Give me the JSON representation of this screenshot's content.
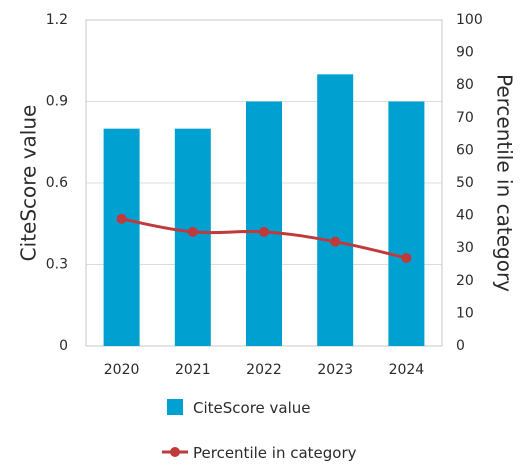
{
  "chart_data": {
    "type": "bar",
    "categories": [
      "2020",
      "2021",
      "2022",
      "2023",
      "2024"
    ],
    "series": [
      {
        "name": "CiteScore value",
        "type": "bar",
        "axis": "left",
        "values": [
          0.8,
          0.8,
          0.9,
          1.0,
          0.9
        ]
      },
      {
        "name": "Percentile in category",
        "type": "line",
        "axis": "right",
        "values": [
          39,
          35,
          35,
          32,
          27
        ]
      }
    ],
    "ylabel": "CiteScore value",
    "y2label": "Percentile in category",
    "ylim": [
      0,
      1.2
    ],
    "y2lim": [
      0,
      100
    ],
    "yticks": [
      "0",
      "0.3",
      "0.6",
      "0.9",
      "1.2"
    ],
    "y2ticks": [
      "0",
      "10",
      "20",
      "30",
      "40",
      "50",
      "60",
      "70",
      "80",
      "90",
      "100"
    ],
    "grid": true,
    "legend_position": "bottom"
  },
  "colors": {
    "bar": "#00a0d0",
    "line": "#c0393b",
    "grid": "#dcdcdc",
    "frame": "#c8c8c8"
  }
}
